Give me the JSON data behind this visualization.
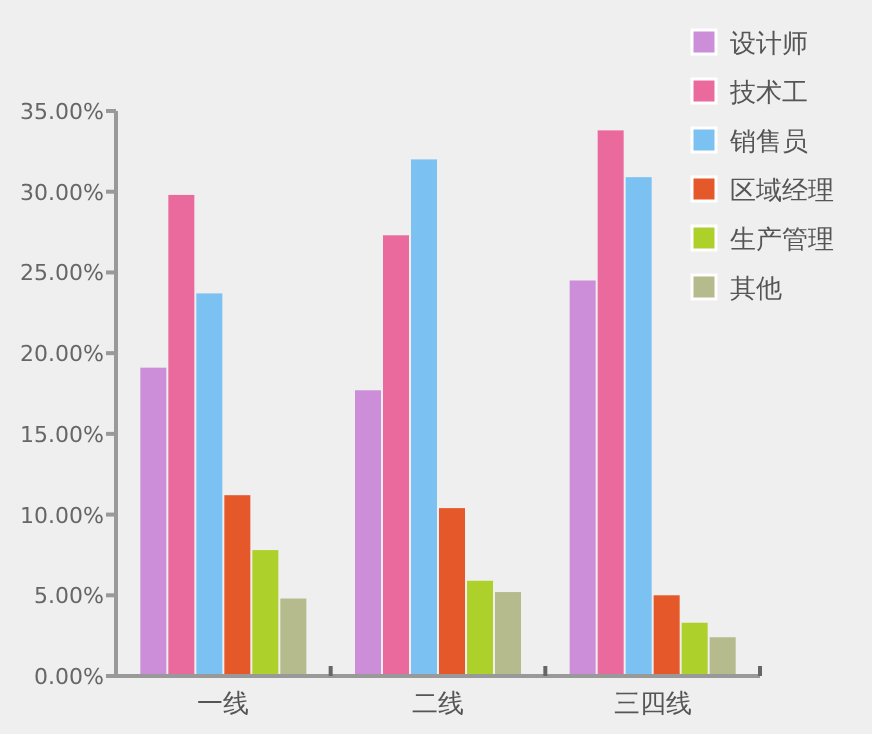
{
  "chart_data": {
    "type": "bar",
    "categories": [
      "一线",
      "二线",
      "三四线"
    ],
    "series": [
      {
        "name": "设计师",
        "color": "#cc8ed8",
        "values": [
          19.1,
          17.7,
          24.5
        ]
      },
      {
        "name": "技术工",
        "color": "#ea6a9e",
        "values": [
          29.8,
          27.3,
          33.8
        ]
      },
      {
        "name": "销售员",
        "color": "#7bc1f2",
        "values": [
          23.7,
          32.0,
          30.9
        ]
      },
      {
        "name": "区域经理",
        "color": "#e5582a",
        "values": [
          11.2,
          10.4,
          5.0
        ]
      },
      {
        "name": "生产管理",
        "color": "#add12a",
        "values": [
          7.8,
          5.9,
          3.3
        ]
      },
      {
        "name": "其他",
        "color": "#b5bb8c",
        "values": [
          4.8,
          5.2,
          2.4
        ]
      }
    ],
    "ylim": [
      0,
      35
    ],
    "yticks": [
      {
        "value": 0,
        "label": "0.00%"
      },
      {
        "value": 5,
        "label": "5.00%"
      },
      {
        "value": 10,
        "label": "10.00%"
      },
      {
        "value": 15,
        "label": "15.00%"
      },
      {
        "value": 20,
        "label": "20.00%"
      },
      {
        "value": 25,
        "label": "25.00%"
      },
      {
        "value": 30,
        "label": "30.00%"
      },
      {
        "value": 35,
        "label": "35.00%"
      }
    ],
    "grid": false,
    "legend": "top right"
  }
}
